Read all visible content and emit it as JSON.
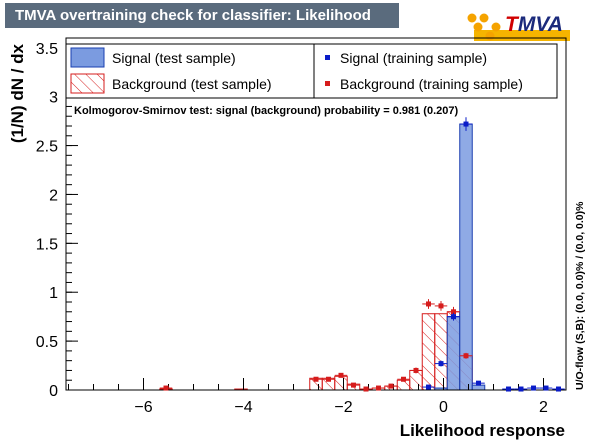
{
  "title": "TMVA overtraining check for classifier: Likelihood",
  "logo": {
    "t": "T",
    "rest": "MVA"
  },
  "chart_data": {
    "type": "bar",
    "xlabel": "Likelihood response",
    "ylabel": "(1/N) dN  /  dx",
    "side_label": "U/O-flow (S,B): (0.0, 0.0)% / (0.0, 0.0)%",
    "xlim": [
      -7.55,
      2.45
    ],
    "ylim": [
      0,
      3.6
    ],
    "x_ticks": [
      "−6",
      "−4",
      "−2",
      "0",
      "2"
    ],
    "x_tick_values": [
      -6,
      -4,
      -2,
      0,
      2
    ],
    "y_ticks": [
      "0",
      "0.5",
      "1",
      "1.5",
      "2",
      "2.5",
      "3",
      "3.5"
    ],
    "y_tick_values": [
      0,
      0.5,
      1,
      1.5,
      2,
      2.5,
      3,
      3.5
    ],
    "ks_text": "Kolmogorov-Smirnov test: signal (background) probability = 0.981 (0.207)",
    "legend": {
      "signal_test": "Signal (test sample)",
      "background_test": "Background (test sample)",
      "signal_train": "Signal (training sample)",
      "background_train": "Background (training sample)"
    },
    "bin_width": 0.25,
    "signal_test": [
      {
        "x": -0.05,
        "y": 0.02
      },
      {
        "x": 0.2,
        "y": 0.75
      },
      {
        "x": 0.45,
        "y": 2.72
      },
      {
        "x": 0.7,
        "y": 0.05
      }
    ],
    "background_test": [
      {
        "x": -0.05,
        "y": 0.78
      },
      {
        "x": 0.2,
        "y": 0.8
      },
      {
        "x": 0.45,
        "y": 0.35
      }
    ],
    "signal_train": [
      {
        "x": -0.3,
        "y": 0.03,
        "e": 0.01
      },
      {
        "x": -0.05,
        "y": 0.27,
        "e": 0.03
      },
      {
        "x": 0.2,
        "y": 0.75,
        "e": 0.04
      },
      {
        "x": 0.45,
        "y": 2.72,
        "e": 0.07
      },
      {
        "x": 0.7,
        "y": 0.07,
        "e": 0.01
      },
      {
        "x": 1.3,
        "y": 0.01,
        "e": 0.005
      },
      {
        "x": 1.55,
        "y": 0.01,
        "e": 0.005
      },
      {
        "x": 1.8,
        "y": 0.02,
        "e": 0.005
      },
      {
        "x": 2.05,
        "y": 0.02,
        "e": 0.005
      },
      {
        "x": 2.3,
        "y": 0.01,
        "e": 0.005
      }
    ],
    "background_train": [
      {
        "x": -5.55,
        "y": 0.02,
        "e": 0.01
      },
      {
        "x": -2.55,
        "y": 0.11,
        "e": 0.02
      },
      {
        "x": -2.3,
        "y": 0.11,
        "e": 0.02
      },
      {
        "x": -2.05,
        "y": 0.15,
        "e": 0.02
      },
      {
        "x": -1.8,
        "y": 0.05,
        "e": 0.01
      },
      {
        "x": -1.55,
        "y": 0.01,
        "e": 0.01
      },
      {
        "x": -1.3,
        "y": 0.02,
        "e": 0.01
      },
      {
        "x": -1.05,
        "y": 0.04,
        "e": 0.01
      },
      {
        "x": -0.8,
        "y": 0.11,
        "e": 0.02
      },
      {
        "x": -0.55,
        "y": 0.2,
        "e": 0.03
      },
      {
        "x": -0.3,
        "y": 0.88,
        "e": 0.05
      },
      {
        "x": -0.05,
        "y": 0.86,
        "e": 0.05
      },
      {
        "x": 0.2,
        "y": 0.8,
        "e": 0.05
      },
      {
        "x": 0.45,
        "y": 0.35,
        "e": 0.03
      }
    ],
    "background_test_extra": [
      {
        "x": -5.55,
        "y": 0.01
      },
      {
        "x": -4.05,
        "y": 0.01
      },
      {
        "x": -2.55,
        "y": 0.12
      },
      {
        "x": -2.3,
        "y": 0.12
      },
      {
        "x": -2.05,
        "y": 0.14
      },
      {
        "x": -1.8,
        "y": 0.06
      },
      {
        "x": -1.3,
        "y": 0.02
      },
      {
        "x": -1.05,
        "y": 0.04
      },
      {
        "x": -0.8,
        "y": 0.1
      },
      {
        "x": -0.55,
        "y": 0.2
      },
      {
        "x": -0.3,
        "y": 0.78
      }
    ],
    "colors": {
      "signal_fill": "#7b9be0",
      "signal_line": "#1a3fb0",
      "background_line": "#d61c1c",
      "signal_marker": "#0a1cc8",
      "background_marker": "#d61c1c"
    }
  }
}
